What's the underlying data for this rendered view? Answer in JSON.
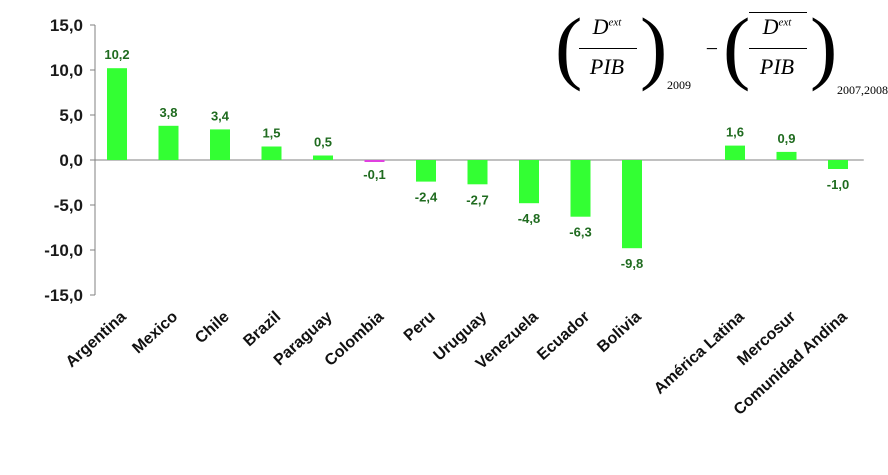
{
  "chart_data": {
    "type": "bar",
    "categories": [
      "Argentina",
      "Mexico",
      "Chile",
      "Brazil",
      "Paraguay",
      "Colombia",
      "Peru",
      "Uruguay",
      "Venezuela",
      "Ecuador",
      "Bolivia",
      "",
      "América Latina",
      "Mercosur",
      "Comunidad Andina"
    ],
    "values": [
      10.2,
      3.8,
      3.4,
      1.5,
      0.5,
      -0.1,
      -2.4,
      -2.7,
      -4.8,
      -6.3,
      -9.8,
      null,
      1.6,
      0.9,
      -1.0
    ],
    "data_labels": [
      "10,2",
      "3,8",
      "3,4",
      "1,5",
      "0,5",
      "-0,1",
      "-2,4",
      "-2,7",
      "-4,8",
      "-6,3",
      "-9,8",
      "",
      "1,6",
      "0,9",
      "-1,0"
    ],
    "ylim": [
      -15,
      15
    ],
    "yticks": [
      15,
      10,
      5,
      0,
      -5,
      -10,
      -15
    ],
    "ytick_labels": [
      "15,0",
      "10,0",
      "5,0",
      "0,0",
      "-5,0",
      "-10,0",
      "-15,0"
    ],
    "title": "",
    "xlabel": "",
    "ylabel": "",
    "grid": false,
    "colors": {
      "positive": "#33ff33",
      "negative": "#33ff33",
      "highlight": "#e040e0",
      "label": "#1f6b1f"
    },
    "highlight_category": "Colombia"
  },
  "formula": {
    "num": "D",
    "sup": "ext",
    "den": "PIB",
    "sub1": "2009",
    "minus": "−",
    "sub2": "2007,2008"
  }
}
